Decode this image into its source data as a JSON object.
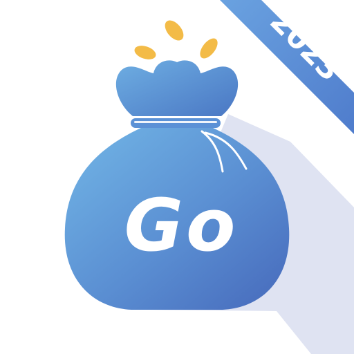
{
  "badge": {
    "text": "2023"
  },
  "logo": {
    "text": "Go"
  },
  "colors": {
    "background": "#ffffff",
    "shadow": "#dfe3f2",
    "ribbon": "#5f8fd6",
    "bag_light": "#6fb1e4",
    "bag_dark": "#4a72c0",
    "coin": "#f3bb47"
  },
  "icons": [
    "money-bag-icon",
    "coin-icon"
  ]
}
